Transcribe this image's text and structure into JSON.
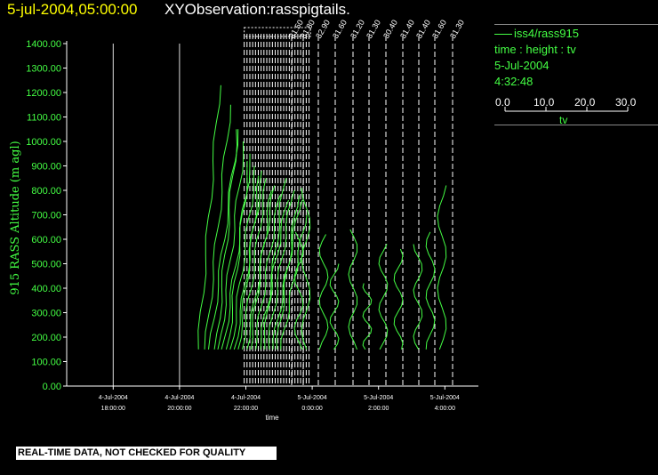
{
  "header": {
    "date_time": "5-jul-2004,05:00:00",
    "title": "XYObservation:rasspigtails."
  },
  "legend": {
    "series_line": "iss4/rass915",
    "mapping": "time : height : tv",
    "date": "5-Jul-2004",
    "time": "4:32:48",
    "scale_ticks": [
      "0.0",
      "10.0",
      "20.0",
      "30.0"
    ],
    "scale_label": "tv"
  },
  "footer": {
    "disclaimer": "REAL-TIME DATA, NOT CHECKED FOR QUALITY"
  },
  "chart_data": {
    "type": "line",
    "title": "XYObservation:rasspigtails.",
    "ylabel": "915 RASS Altitude (m agl)",
    "xlabel": "time",
    "ylim": [
      0,
      1400
    ],
    "y_ticks": [
      "0.00",
      "100.00",
      "200.00",
      "300.00",
      "400.00",
      "500.00",
      "600.00",
      "700.00",
      "800.00",
      "900.00",
      "1000.00",
      "1100.00",
      "1200.00",
      "1300.00",
      "1400.00"
    ],
    "x_ticks": [
      {
        "date": "4-Jul-2004",
        "time": "18:00:00"
      },
      {
        "date": "4-Jul-2004",
        "time": "20:00:00"
      },
      {
        "date": "4-Jul-2004",
        "time": "22:00:00"
      },
      {
        "date": "5-Jul-2004",
        "time": "0:00:00"
      },
      {
        "date": "5-Jul-2004",
        "time": "2:00:00"
      },
      {
        "date": "5-Jul-2004",
        "time": "4:00:00"
      }
    ],
    "xlim": [
      "4-Jul-2004 17:00:00",
      "5-Jul-2004 05:00:00"
    ],
    "profile_labels": [
      "31.50",
      "31.80",
      "32.90",
      "31.60",
      "31.20",
      "31.30",
      "30.40",
      "31.40",
      "31.40",
      "31.60",
      "31.30"
    ],
    "colors": {
      "series": "#44ff44",
      "axis": "#ffffff",
      "title_date": "#ffff00",
      "label": "#44ff44"
    }
  }
}
